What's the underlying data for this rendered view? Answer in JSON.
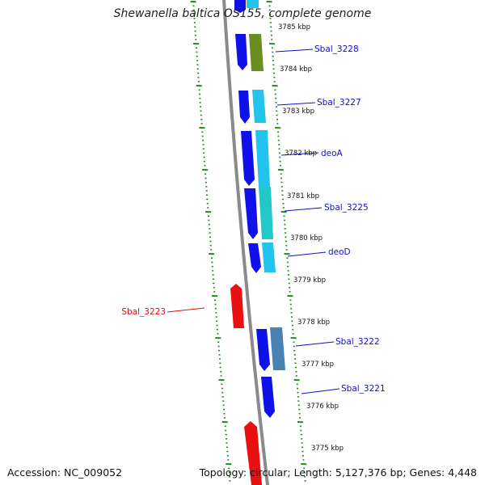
{
  "title": "Shewanella baltica OS155, complete genome",
  "footer": {
    "accession": "Accession: NC_009052",
    "topology": "Topology: circular; Length: 5,127,376 bp; Genes: 4,448"
  },
  "colors": {
    "backbone": "#8a8a8a",
    "tick": "#1f8a1f",
    "gene_label": "#1010c8",
    "reverse_label": "#e01010"
  },
  "kbp_labels": [
    {
      "text": "3785 kbp",
      "pos": 3785
    },
    {
      "text": "3784 kbp",
      "pos": 3784
    },
    {
      "text": "3783 kbp",
      "pos": 3783
    },
    {
      "text": "3782 kbp",
      "pos": 3782
    },
    {
      "text": "3781 kbp",
      "pos": 3781
    },
    {
      "text": "3780 kbp",
      "pos": 3780
    },
    {
      "text": "3779 kbp",
      "pos": 3779
    },
    {
      "text": "3778 kbp",
      "pos": 3778
    },
    {
      "text": "3777 kbp",
      "pos": 3777
    },
    {
      "text": "3776 kbp",
      "pos": 3776
    },
    {
      "text": "3775 kbp",
      "pos": 3775
    }
  ],
  "gene_labels": [
    {
      "text": "Sbal_3228",
      "side": "right",
      "color": "#1010c8"
    },
    {
      "text": "Sbal_3227",
      "side": "right",
      "color": "#1010c8"
    },
    {
      "text": "deoA",
      "side": "right",
      "color": "#1010c8"
    },
    {
      "text": "Sbal_3225",
      "side": "right",
      "color": "#1010c8"
    },
    {
      "text": "deoD",
      "side": "right",
      "color": "#1010c8"
    },
    {
      "text": "Sbal_3223",
      "side": "left",
      "color": "#e01010"
    },
    {
      "text": "Sbal_3222",
      "side": "right",
      "color": "#1010c8"
    },
    {
      "text": "Sbal_3221",
      "side": "right",
      "color": "#1010c8"
    }
  ]
}
